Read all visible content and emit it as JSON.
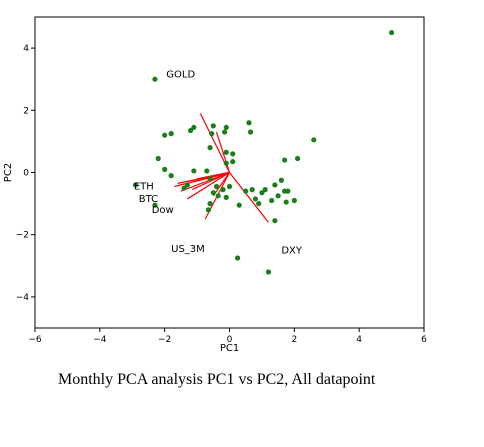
{
  "caption": "Monthly PCA analysis PC1 vs PC2, All datapoint",
  "colors": {
    "points": "#1a7f1a",
    "loadings": "#ff0000",
    "axes": "#000000",
    "text": "#000000"
  },
  "chart_data": {
    "type": "scatter",
    "title": "",
    "xlabel": "PC1",
    "ylabel": "PC2",
    "xlim": [
      -6,
      6
    ],
    "ylim": [
      -5,
      5
    ],
    "xticks": [
      -6,
      -4,
      -2,
      0,
      2,
      4,
      6
    ],
    "yticks": [
      -4,
      -2,
      0,
      2,
      4
    ],
    "xtick_labels": [
      "−6",
      "−4",
      "−2",
      "0",
      "2",
      "4",
      "6"
    ],
    "ytick_labels": [
      "−4",
      "−2",
      "0",
      "2",
      "4"
    ],
    "grid": false,
    "points": [
      {
        "x": 5.0,
        "y": 4.5
      },
      {
        "x": -2.3,
        "y": 3.0
      },
      {
        "x": -2.0,
        "y": 1.2
      },
      {
        "x": -1.8,
        "y": 1.25
      },
      {
        "x": -1.2,
        "y": 1.35
      },
      {
        "x": -1.1,
        "y": 1.45
      },
      {
        "x": -0.5,
        "y": 1.5
      },
      {
        "x": -0.55,
        "y": 1.25
      },
      {
        "x": -0.15,
        "y": 1.3
      },
      {
        "x": -0.1,
        "y": 1.45
      },
      {
        "x": 0.6,
        "y": 1.6
      },
      {
        "x": 0.65,
        "y": 1.3
      },
      {
        "x": 1.7,
        "y": 0.4
      },
      {
        "x": 2.1,
        "y": 0.45
      },
      {
        "x": 2.6,
        "y": 1.05
      },
      {
        "x": -2.2,
        "y": 0.45
      },
      {
        "x": -0.6,
        "y": 0.8
      },
      {
        "x": -0.1,
        "y": 0.65
      },
      {
        "x": 0.1,
        "y": 0.6
      },
      {
        "x": 0.1,
        "y": 0.35
      },
      {
        "x": -0.1,
        "y": 0.3
      },
      {
        "x": -2.0,
        "y": 0.1
      },
      {
        "x": -1.8,
        "y": -0.1
      },
      {
        "x": -1.1,
        "y": 0.05
      },
      {
        "x": -0.7,
        "y": 0.05
      },
      {
        "x": -0.6,
        "y": -0.2
      },
      {
        "x": -0.4,
        "y": -0.45
      },
      {
        "x": -0.2,
        "y": -0.55
      },
      {
        "x": 0.0,
        "y": -0.45
      },
      {
        "x": -1.4,
        "y": -0.5
      },
      {
        "x": -1.3,
        "y": -0.4
      },
      {
        "x": -0.5,
        "y": -0.65
      },
      {
        "x": -0.35,
        "y": -0.75
      },
      {
        "x": -0.1,
        "y": -0.8
      },
      {
        "x": -0.6,
        "y": -1.0
      },
      {
        "x": -0.65,
        "y": -1.2
      },
      {
        "x": 0.3,
        "y": -1.05
      },
      {
        "x": 0.5,
        "y": -0.6
      },
      {
        "x": 0.7,
        "y": -0.55
      },
      {
        "x": 0.8,
        "y": -0.85
      },
      {
        "x": 0.9,
        "y": -1.0
      },
      {
        "x": 1.0,
        "y": -0.65
      },
      {
        "x": 1.1,
        "y": -0.55
      },
      {
        "x": 1.3,
        "y": -0.9
      },
      {
        "x": 1.4,
        "y": -0.4
      },
      {
        "x": 1.5,
        "y": -0.75
      },
      {
        "x": 1.7,
        "y": -0.6
      },
      {
        "x": 1.75,
        "y": -0.95
      },
      {
        "x": 1.6,
        "y": -0.25
      },
      {
        "x": 2.0,
        "y": -0.9
      },
      {
        "x": 1.8,
        "y": -0.6
      },
      {
        "x": 1.4,
        "y": -1.55
      },
      {
        "x": -2.9,
        "y": -0.4
      },
      {
        "x": -2.3,
        "y": -1.05
      },
      {
        "x": 0.25,
        "y": -2.75
      },
      {
        "x": 1.2,
        "y": -3.2
      }
    ],
    "loadings": [
      {
        "label": "GOLD",
        "x": -0.9,
        "y": 1.9,
        "label_x": -1.95,
        "label_y": 3.05
      },
      {
        "label": "ETH",
        "x": -1.6,
        "y": -0.35,
        "label_x": -2.95,
        "label_y": -0.55
      },
      {
        "label": "BTC",
        "x": -1.5,
        "y": -0.6,
        "label_x": -2.8,
        "label_y": -0.95
      },
      {
        "label": "Dow",
        "x": -1.3,
        "y": -0.85,
        "label_x": -2.4,
        "label_y": -1.3
      },
      {
        "label": "US_3M",
        "x": -0.75,
        "y": -1.5,
        "label_x": -1.8,
        "label_y": -2.55
      },
      {
        "label": "DXY",
        "x": 1.2,
        "y": -1.6,
        "label_x": 1.6,
        "label_y": -2.6
      },
      {
        "label": "",
        "x": -0.4,
        "y": 1.3
      },
      {
        "label": "",
        "x": -1.7,
        "y": -0.45
      },
      {
        "label": "",
        "x": -1.1,
        "y": -0.3
      },
      {
        "label": "",
        "x": -1.15,
        "y": -0.55
      },
      {
        "label": "",
        "x": -0.5,
        "y": -0.75
      },
      {
        "label": "",
        "x": -1.0,
        "y": -0.2
      }
    ]
  }
}
